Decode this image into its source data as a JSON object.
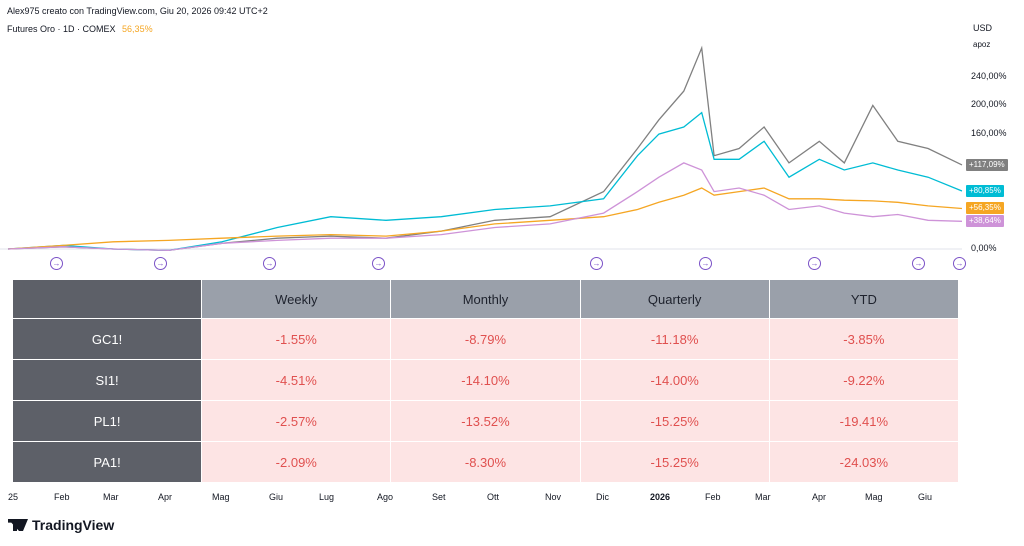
{
  "header": {
    "author_line": "Alex975 creato con TradingView.com, Giu 20, 2026 09:42 UTC+2",
    "legend_text": "Futures Oro · 1D · COMEX",
    "legend_value": "56,35%"
  },
  "price_axis": {
    "unit": "USD",
    "scale_mode": "apoz",
    "ticks": [
      "240,00%",
      "200,00%",
      "160,00%",
      "0,00%"
    ],
    "tags": [
      {
        "text": "+117,09%",
        "color": "#808080"
      },
      {
        "text": "+80,85%",
        "color": "#00bcd4"
      },
      {
        "text": "+56,35%",
        "color": "#f5a623"
      },
      {
        "text": "+38,64%",
        "color": "#ce93d8"
      }
    ]
  },
  "time_axis": [
    "25",
    "Feb",
    "Mar",
    "Apr",
    "Mag",
    "Giu",
    "Lug",
    "Ago",
    "Set",
    "Ott",
    "Nov",
    "Dic",
    "2026",
    "Feb",
    "Mar",
    "Apr",
    "Mag",
    "Giu"
  ],
  "event_markers": 9,
  "table": {
    "columns": [
      "Weekly",
      "Monthly",
      "Quarterly",
      "YTD"
    ],
    "rows": [
      {
        "symbol": "GC1!",
        "values": [
          "-1.55%",
          "-8.79%",
          "-11.18%",
          "-3.85%"
        ]
      },
      {
        "symbol": "SI1!",
        "values": [
          "-4.51%",
          "-14.10%",
          "-14.00%",
          "-9.22%"
        ]
      },
      {
        "symbol": "PL1!",
        "values": [
          "-2.57%",
          "-13.52%",
          "-15.25%",
          "-19.41%"
        ]
      },
      {
        "symbol": "PA1!",
        "values": [
          "-2.09%",
          "-8.30%",
          "-15.25%",
          "-24.03%"
        ]
      }
    ]
  },
  "brand": "TradingView",
  "chart_data": {
    "type": "line",
    "title": "Futures Oro · 1D · COMEX",
    "y_unit": "%",
    "ylim": [
      0,
      280
    ],
    "x_range": [
      "2025-01",
      "2026-06"
    ],
    "series": [
      {
        "color": "#808080",
        "points": [
          [
            "2025-01-01",
            0
          ],
          [
            "2025-02-01",
            3
          ],
          [
            "2025-03-01",
            0
          ],
          [
            "2025-04-01",
            -2
          ],
          [
            "2025-05-01",
            8
          ],
          [
            "2025-06-01",
            15
          ],
          [
            "2025-07-01",
            18
          ],
          [
            "2025-08-01",
            15
          ],
          [
            "2025-09-01",
            25
          ],
          [
            "2025-10-01",
            40
          ],
          [
            "2025-11-01",
            45
          ],
          [
            "2025-12-01",
            80
          ],
          [
            "2025-12-20",
            140
          ],
          [
            "2026-01-01",
            180
          ],
          [
            "2026-01-15",
            220
          ],
          [
            "2026-01-25",
            280
          ],
          [
            "2026-02-01",
            130
          ],
          [
            "2026-02-15",
            140
          ],
          [
            "2026-03-01",
            170
          ],
          [
            "2026-03-15",
            120
          ],
          [
            "2026-04-01",
            150
          ],
          [
            "2026-04-15",
            120
          ],
          [
            "2026-05-01",
            200
          ],
          [
            "2026-05-15",
            150
          ],
          [
            "2026-06-01",
            140
          ],
          [
            "2026-06-20",
            117.09
          ]
        ]
      },
      {
        "color": "#00bcd4",
        "points": [
          [
            "2025-01-01",
            0
          ],
          [
            "2025-02-01",
            5
          ],
          [
            "2025-03-01",
            0
          ],
          [
            "2025-04-01",
            -2
          ],
          [
            "2025-05-01",
            10
          ],
          [
            "2025-06-01",
            30
          ],
          [
            "2025-07-01",
            45
          ],
          [
            "2025-08-01",
            40
          ],
          [
            "2025-09-01",
            45
          ],
          [
            "2025-10-01",
            55
          ],
          [
            "2025-11-01",
            60
          ],
          [
            "2025-12-01",
            70
          ],
          [
            "2025-12-20",
            130
          ],
          [
            "2026-01-01",
            160
          ],
          [
            "2026-01-15",
            170
          ],
          [
            "2026-01-25",
            190
          ],
          [
            "2026-02-01",
            125
          ],
          [
            "2026-02-15",
            125
          ],
          [
            "2026-03-01",
            150
          ],
          [
            "2026-03-15",
            100
          ],
          [
            "2026-04-01",
            125
          ],
          [
            "2026-04-15",
            110
          ],
          [
            "2026-05-01",
            120
          ],
          [
            "2026-05-15",
            110
          ],
          [
            "2026-06-01",
            100
          ],
          [
            "2026-06-20",
            80.85
          ]
        ]
      },
      {
        "color": "#f5a623",
        "points": [
          [
            "2025-01-01",
            0
          ],
          [
            "2025-02-01",
            5
          ],
          [
            "2025-03-01",
            10
          ],
          [
            "2025-04-01",
            12
          ],
          [
            "2025-05-01",
            15
          ],
          [
            "2025-06-01",
            18
          ],
          [
            "2025-07-01",
            20
          ],
          [
            "2025-08-01",
            18
          ],
          [
            "2025-09-01",
            25
          ],
          [
            "2025-10-01",
            35
          ],
          [
            "2025-11-01",
            40
          ],
          [
            "2025-12-01",
            45
          ],
          [
            "2025-12-20",
            55
          ],
          [
            "2026-01-01",
            65
          ],
          [
            "2026-01-15",
            75
          ],
          [
            "2026-01-25",
            85
          ],
          [
            "2026-02-01",
            75
          ],
          [
            "2026-02-15",
            80
          ],
          [
            "2026-03-01",
            85
          ],
          [
            "2026-03-15",
            70
          ],
          [
            "2026-04-01",
            70
          ],
          [
            "2026-04-15",
            68
          ],
          [
            "2026-05-01",
            67
          ],
          [
            "2026-05-15",
            65
          ],
          [
            "2026-06-01",
            60
          ],
          [
            "2026-06-20",
            56.35
          ]
        ]
      },
      {
        "color": "#ce93d8",
        "points": [
          [
            "2025-01-01",
            0
          ],
          [
            "2025-02-01",
            3
          ],
          [
            "2025-03-01",
            0
          ],
          [
            "2025-04-01",
            -2
          ],
          [
            "2025-05-01",
            8
          ],
          [
            "2025-06-01",
            12
          ],
          [
            "2025-07-01",
            15
          ],
          [
            "2025-08-01",
            15
          ],
          [
            "2025-09-01",
            20
          ],
          [
            "2025-10-01",
            30
          ],
          [
            "2025-11-01",
            35
          ],
          [
            "2025-12-01",
            50
          ],
          [
            "2025-12-20",
            80
          ],
          [
            "2026-01-01",
            100
          ],
          [
            "2026-01-15",
            120
          ],
          [
            "2026-01-25",
            110
          ],
          [
            "2026-02-01",
            80
          ],
          [
            "2026-02-15",
            85
          ],
          [
            "2026-03-01",
            75
          ],
          [
            "2026-03-15",
            55
          ],
          [
            "2026-04-01",
            60
          ],
          [
            "2026-04-15",
            50
          ],
          [
            "2026-05-01",
            45
          ],
          [
            "2026-05-15",
            48
          ],
          [
            "2026-06-01",
            40
          ],
          [
            "2026-06-20",
            38.64
          ]
        ]
      }
    ]
  }
}
